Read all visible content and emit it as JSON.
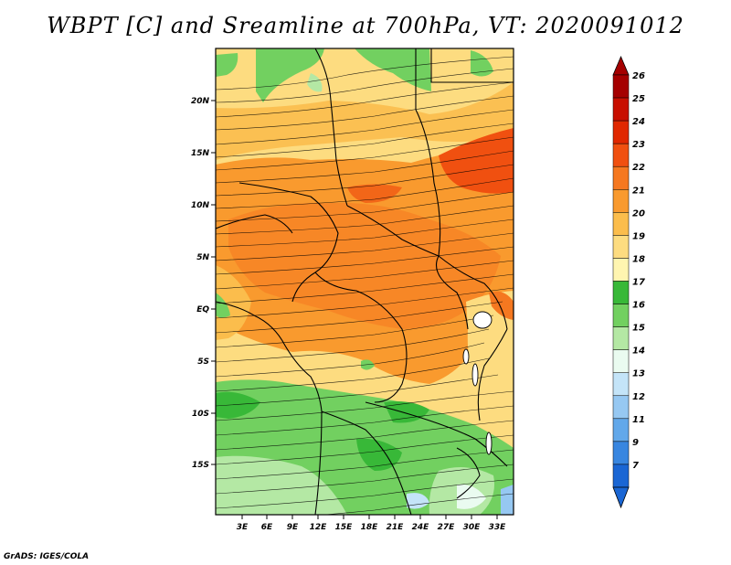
{
  "title": "WBPT [C] and Sreamline at 700hPa, VT: 2020091012",
  "credit": "GrADS: IGES/COLA",
  "map": {
    "lat_ticks": [
      "20N",
      "15N",
      "10N",
      "5N",
      "EQ",
      "5S",
      "10S",
      "15S"
    ],
    "lon_ticks": [
      "3E",
      "6E",
      "9E",
      "12E",
      "15E",
      "18E",
      "21E",
      "24E",
      "27E",
      "30E",
      "33E"
    ]
  },
  "colorbar": {
    "labels": [
      "26",
      "25",
      "24",
      "23",
      "22",
      "21",
      "20",
      "19",
      "18",
      "17",
      "16",
      "15",
      "14",
      "13",
      "12",
      "11",
      "9",
      "7"
    ],
    "colors": [
      "#a50000",
      "#c80f00",
      "#e02800",
      "#f05010",
      "#f57820",
      "#f99a2e",
      "#fbbd4c",
      "#fddc80",
      "#fff5b0",
      "#38b838",
      "#72d060",
      "#b4e8a4",
      "#eafbf0",
      "#c4e4f8",
      "#96c8f2",
      "#62a8ea",
      "#3886e0",
      "#1a66d4"
    ]
  }
}
